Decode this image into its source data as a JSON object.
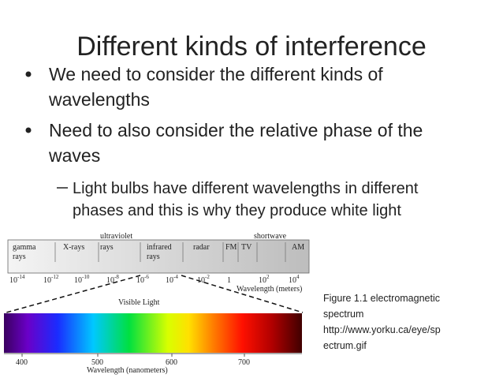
{
  "slide": {
    "title": "Different kinds of interference",
    "bullets": [
      [
        "We need to consider the different kinds of",
        "wavelengths"
      ],
      [
        "Need to also consider the relative phase of the",
        "waves"
      ]
    ],
    "sub_bullets": [
      [
        "Light bulbs have different wavelengths in different",
        "phases and this is why they produce white light"
      ]
    ],
    "figure": {
      "bands": [
        [
          "gamma",
          "rays"
        ],
        [
          "X-rays"
        ],
        [
          "ultraviolet",
          "rays"
        ],
        [
          "infrared",
          "rays"
        ],
        [
          "radar"
        ],
        [
          "FM"
        ],
        [
          "TV"
        ],
        [
          "shortwave"
        ],
        [
          "AM"
        ]
      ],
      "scale": [
        {
          "base": "10",
          "exp": "-14"
        },
        {
          "base": "10",
          "exp": "-12"
        },
        {
          "base": "10",
          "exp": "-10"
        },
        {
          "base": "10",
          "exp": "-8"
        },
        {
          "base": "10",
          "exp": "-6"
        },
        {
          "base": "10",
          "exp": "-4"
        },
        {
          "base": "10",
          "exp": "-2"
        },
        {
          "base": "1"
        },
        {
          "base": "10",
          "exp": "2"
        },
        {
          "base": "10",
          "exp": "4"
        }
      ],
      "scale_label": "Wavelength (meters)",
      "visible_label": "Visible Light",
      "nm_ticks": [
        400,
        500,
        600,
        700
      ],
      "nm_label": "Wavelength (nanometers)"
    },
    "caption": [
      "Figure 1.1 electromagnetic",
      "spectrum",
      "http://www.yorku.ca/eye/sp",
      "ectrum.gif"
    ]
  }
}
